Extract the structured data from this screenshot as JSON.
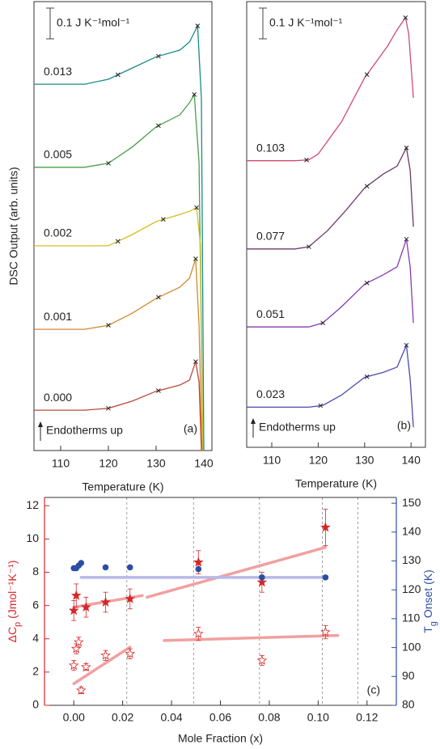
{
  "chart_data": [
    {
      "type": "line",
      "xlabel": "Temperature (K)",
      "ylabel": "DSC Output (arb. units)",
      "scale_label": "0.1 J K⁻¹mol⁻¹",
      "note": "Endotherms up",
      "panel_label": "(a)",
      "xlim": [
        104.4,
        141.7
      ],
      "xticks": [
        110,
        120,
        130,
        140
      ],
      "ylim": [
        0,
        100
      ],
      "series": [
        {
          "name": "0.013",
          "color": "#1a8a8a",
          "x": [
            104.4,
            115,
            120,
            125,
            130,
            135,
            137,
            138.7,
            139.5,
            140
          ],
          "values": [
            81.6,
            81.6,
            82.7,
            85.2,
            87.7,
            89.2,
            91.0,
            94.6,
            78.4,
            0
          ],
          "markers": [
            122,
            130.5,
            138.7
          ]
        },
        {
          "name": "0.005",
          "color": "#4a9e4a",
          "x": [
            104.4,
            115,
            120,
            125,
            130,
            135,
            137,
            138,
            139,
            139.8
          ],
          "values": [
            63.1,
            63.1,
            64.0,
            67.6,
            72.1,
            74.8,
            77.5,
            79.3,
            64.0,
            0
          ],
          "markers": [
            120,
            130.5,
            138
          ]
        },
        {
          "name": "0.002",
          "color": "#d4c020",
          "x": [
            104.4,
            115,
            120,
            125,
            130,
            135,
            137,
            138.5,
            139.3,
            139.8
          ],
          "values": [
            45.6,
            45.6,
            45.6,
            48.1,
            51.0,
            52.6,
            53.3,
            54.1,
            45.9,
            0
          ],
          "markers": [
            122,
            131.5,
            138.5
          ]
        },
        {
          "name": "0.001",
          "color": "#d08a30",
          "x": [
            104.4,
            115,
            120,
            125,
            130,
            135,
            137,
            138.3,
            139,
            139.6
          ],
          "values": [
            27.0,
            27.0,
            27.9,
            30.6,
            33.9,
            36.4,
            38.4,
            42.7,
            27.9,
            0
          ],
          "markers": [
            120,
            130.5,
            138.3
          ]
        },
        {
          "name": "0.000",
          "color": "#b84a3a",
          "x": [
            104.4,
            115,
            120,
            125,
            130,
            135,
            137,
            138.3,
            139,
            139.5
          ],
          "values": [
            9.0,
            9.0,
            9.4,
            11.0,
            13.2,
            14.6,
            15.7,
            19.8,
            15.3,
            0
          ],
          "markers": [
            120,
            130.5,
            138.3
          ]
        }
      ]
    },
    {
      "type": "line",
      "xlabel": "Temperature (K)",
      "scale_label": "0.1 J K⁻¹mol⁻¹",
      "note": "Endotherms up",
      "panel_label": "(b)",
      "xlim": [
        104.6,
        143.1
      ],
      "xticks": [
        110,
        120,
        130,
        140
      ],
      "ylim": [
        0,
        100
      ],
      "series": [
        {
          "name": "0.103",
          "color": "#d04a70",
          "x": [
            104.6,
            115,
            118,
            120,
            125,
            130,
            135,
            137,
            138.8,
            139.5,
            140.5
          ],
          "values": [
            64.3,
            64.3,
            64.5,
            65.8,
            73.0,
            82.9,
            90.1,
            93.7,
            96.4,
            92.8,
            78.4
          ],
          "markers": [
            117.5,
            130.5,
            138.8
          ]
        },
        {
          "name": "0.077",
          "color": "#6a3a6a",
          "x": [
            104.6,
            115,
            118,
            122,
            126,
            130,
            134,
            137,
            139,
            139.8,
            140.5
          ],
          "values": [
            44.5,
            44.5,
            45.0,
            48.6,
            53.2,
            58.2,
            61.3,
            63.1,
            67.2,
            62.2,
            49.5
          ],
          "markers": [
            118,
            130.5,
            139
          ]
        },
        {
          "name": "0.051",
          "color": "#8a3ab0",
          "x": [
            104.6,
            115,
            118,
            121,
            125,
            130,
            134,
            137,
            139,
            139.8,
            140.5
          ],
          "values": [
            27.0,
            27.0,
            27.0,
            27.9,
            31.5,
            36.6,
            38.7,
            40.5,
            46.7,
            40.5,
            27.9
          ],
          "markers": [
            121,
            130.5,
            139
          ]
        },
        {
          "name": "0.023",
          "color": "#4a4ab0",
          "x": [
            104.6,
            115,
            118,
            121,
            125,
            130,
            134,
            137,
            139,
            139.8,
            140.5
          ],
          "values": [
            9.0,
            9.0,
            9.0,
            9.4,
            11.7,
            15.7,
            16.8,
            18.0,
            22.9,
            15.3,
            4.5
          ],
          "markers": [
            120.5,
            130.5,
            139
          ]
        }
      ]
    },
    {
      "type": "scatter",
      "xlabel": "Mole Fraction (x)",
      "panel_label": "(c)",
      "ylabel": {
        "main": "ΔC",
        "sub": "p",
        "rest": " (Jmol⁻¹K⁻¹)"
      },
      "y2label": {
        "main": "T",
        "sub": "g",
        "rest": " Onset (K)"
      },
      "xlim": [
        -0.012,
        0.132
      ],
      "xticks": [
        {
          "value": 0,
          "label": "0.00"
        },
        {
          "value": 0.02,
          "label": "0.02"
        },
        {
          "value": 0.04,
          "label": "0.04"
        },
        {
          "value": 0.06,
          "label": "0.06"
        },
        {
          "value": 0.08,
          "label": "0.08"
        },
        {
          "value": 0.1,
          "label": "0.10"
        },
        {
          "value": 0.12,
          "label": "0.12"
        }
      ],
      "ylim": [
        0,
        12.5
      ],
      "yticks": [
        0,
        2,
        4,
        6,
        8,
        10,
        12
      ],
      "y2lim": [
        80,
        152
      ],
      "y2ticks": [
        80,
        90,
        100,
        110,
        120,
        130,
        140,
        150
      ],
      "vlines": [
        0.0217,
        0.049,
        0.076,
        0.1017,
        0.1163
      ],
      "series": [
        {
          "marker": "star-filled",
          "color": "#d62728",
          "x": [
            0,
            0.001,
            0.005,
            0.013,
            0.023,
            0.051,
            0.077,
            0.103
          ],
          "values": [
            5.7,
            6.6,
            5.9,
            6.2,
            6.4,
            8.6,
            7.4,
            10.7
          ],
          "errors": [
            0.6,
            0.7,
            0.6,
            0.6,
            0.6,
            0.7,
            0.6,
            1.1
          ]
        },
        {
          "marker": "star-open",
          "color": "#d62728",
          "x": [
            0,
            0.001,
            0.002,
            0.003,
            0.005,
            0.013,
            0.023,
            0.051,
            0.077,
            0.103
          ],
          "values": [
            2.4,
            3.4,
            3.8,
            0.9,
            2.3,
            3.0,
            3.1,
            4.3,
            2.7,
            4.4
          ],
          "errors": [
            0.3,
            0.3,
            0.3,
            0.2,
            0.2,
            0.3,
            0.3,
            0.4,
            0.3,
            0.4
          ]
        },
        {
          "marker": "circle",
          "color": "#2b4ea2",
          "axis": "y2",
          "x": [
            0,
            0.001,
            0.002,
            0.003,
            0.013,
            0.023,
            0.051,
            0.077,
            0.103
          ],
          "values": [
            127.5,
            127.5,
            128.4,
            129.3,
            127.8,
            127.8,
            127.2,
            124.3,
            124.3
          ]
        }
      ],
      "fits": [
        {
          "color": "#f2a0a0",
          "x": [
            0,
            0.028
          ],
          "values": [
            5.9,
            6.6
          ]
        },
        {
          "color": "#f2a0a0",
          "x": [
            0.03,
            0.103
          ],
          "values": [
            6.5,
            9.5
          ]
        },
        {
          "color": "#f2a0a0",
          "x": [
            0,
            0.023
          ],
          "values": [
            1.3,
            3.5
          ]
        },
        {
          "color": "#f2a0a0",
          "x": [
            0.037,
            0.108
          ],
          "values": [
            3.9,
            4.2
          ]
        },
        {
          "color": "#b8b8e8",
          "axis": "y2",
          "x": [
            0.003,
            0.103
          ],
          "values": [
            124.3,
            124.3
          ]
        }
      ]
    }
  ]
}
